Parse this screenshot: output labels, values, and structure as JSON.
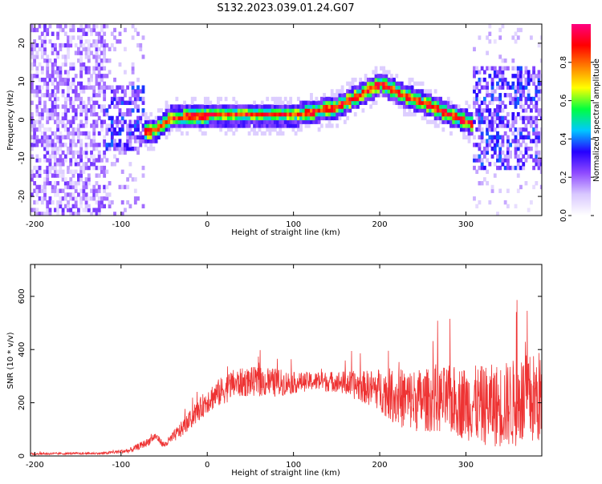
{
  "title": "S132.2023.039.01.24.G07",
  "chart_data": [
    {
      "type": "heatmap",
      "xlabel": "Height of straight line (km)",
      "ylabel": "Frequency (Hz)",
      "xlim": [
        -205,
        388
      ],
      "ylim": [
        -25,
        25
      ],
      "x_ticks": [
        -200,
        -100,
        0,
        100,
        200,
        300
      ],
      "y_ticks": [
        -20,
        -10,
        0,
        10,
        20
      ],
      "ridge": {
        "x": [
          -75,
          -60,
          -45,
          -20,
          0,
          50,
          100,
          130,
          150,
          175,
          200,
          225,
          250,
          275,
          300,
          310
        ],
        "y": [
          -3.5,
          -3,
          0,
          0.3,
          0.8,
          1,
          0.8,
          2,
          3,
          6,
          9,
          6,
          4,
          1.5,
          -1,
          -2
        ]
      },
      "colorbar": {
        "label": "Normalized spectral amplitude",
        "range": [
          0,
          1
        ],
        "ticks": [
          "0.0",
          "0.2",
          "0.4",
          "0.6",
          "0.8"
        ],
        "colors": [
          "#ffffff",
          "#d9c8ff",
          "#8f4bff",
          "#2600ff",
          "#00c8ff",
          "#00ff40",
          "#ffff00",
          "#ff8000",
          "#ff0000",
          "#ff0080"
        ]
      }
    },
    {
      "type": "line",
      "xlabel": "Height of straight line (km)",
      "ylabel": "SNR (10 * v/v)",
      "xlim": [
        -205,
        388
      ],
      "ylim": [
        0,
        720
      ],
      "x_ticks": [
        -200,
        -100,
        0,
        100,
        200,
        300
      ],
      "y_ticks": [
        0,
        200,
        400,
        600
      ],
      "line_color": "#ee3333",
      "envelope": {
        "x": [
          -205,
          -120,
          -90,
          -70,
          -60,
          -50,
          -30,
          -10,
          0,
          20,
          30,
          50,
          80,
          100,
          120,
          150,
          180,
          200,
          220,
          240,
          260,
          280,
          300,
          320,
          340,
          360,
          388
        ],
        "mean": [
          8,
          10,
          20,
          50,
          75,
          40,
          100,
          170,
          210,
          250,
          270,
          280,
          275,
          275,
          280,
          280,
          260,
          250,
          220,
          210,
          210,
          210,
          200,
          190,
          190,
          200,
          220
        ],
        "spread": [
          4,
          4,
          10,
          15,
          15,
          12,
          30,
          40,
          50,
          55,
          55,
          55,
          55,
          40,
          35,
          40,
          60,
          80,
          110,
          120,
          120,
          130,
          140,
          150,
          160,
          170,
          180
        ]
      }
    }
  ]
}
